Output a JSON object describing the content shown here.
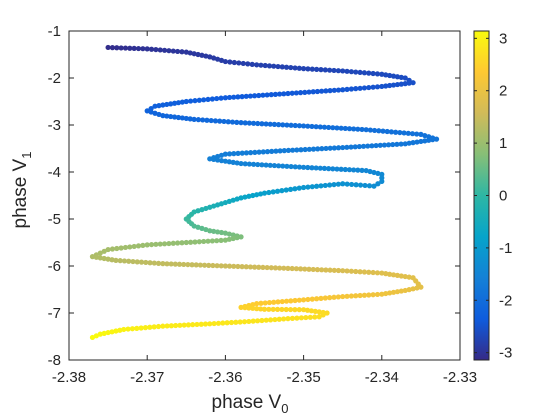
{
  "chart_data": {
    "type": "scatter",
    "title": "",
    "xlabel": "phase V",
    "xlabel_sub": "0",
    "ylabel": "phase V",
    "ylabel_sub": "1",
    "xlim": [
      -2.38,
      -2.33
    ],
    "ylim": [
      -8,
      -1
    ],
    "xticks": [
      -2.38,
      -2.37,
      -2.36,
      -2.35,
      -2.34,
      -2.33
    ],
    "xtick_labels": [
      "-2.38",
      "-2.37",
      "-2.36",
      "-2.35",
      "-2.34",
      "-2.33"
    ],
    "yticks": [
      -8,
      -7,
      -6,
      -5,
      -4,
      -3,
      -2,
      -1
    ],
    "ytick_labels": [
      "-8",
      "-7",
      "-6",
      "-5",
      "-4",
      "-3",
      "-2",
      "-1"
    ],
    "grid": false,
    "colormap": "parula",
    "colormap_stops": [
      "#352a87",
      "#0f5cdd",
      "#1481d6",
      "#06a4ca",
      "#2eb7a4",
      "#87bf77",
      "#d1bb59",
      "#fec832",
      "#f9fb0e"
    ],
    "colorbar": {
      "range": [
        -3.14,
        3.14
      ],
      "ticks": [
        -3,
        -2,
        -1,
        0,
        1,
        2,
        3
      ],
      "tick_labels": [
        "-3",
        "-2",
        "-1",
        "0",
        "1",
        "2",
        "3"
      ]
    },
    "curve_description_note": "",
    "path": [
      [
        -2.375,
        -1.35,
        -3.1
      ],
      [
        -2.37,
        -1.38,
        -3.0
      ],
      [
        -2.365,
        -1.45,
        -2.95
      ],
      [
        -2.362,
        -1.55,
        -2.9
      ],
      [
        -2.36,
        -1.65,
        -2.85
      ],
      [
        -2.356,
        -1.72,
        -2.8
      ],
      [
        -2.35,
        -1.8,
        -2.75
      ],
      [
        -2.345,
        -1.85,
        -2.7
      ],
      [
        -2.34,
        -1.92,
        -2.65
      ],
      [
        -2.337,
        -2.0,
        -2.6
      ],
      [
        -2.336,
        -2.1,
        -2.55
      ],
      [
        -2.34,
        -2.18,
        -2.5
      ],
      [
        -2.345,
        -2.25,
        -2.45
      ],
      [
        -2.352,
        -2.33,
        -2.4
      ],
      [
        -2.36,
        -2.42,
        -2.35
      ],
      [
        -2.365,
        -2.5,
        -2.3
      ],
      [
        -2.369,
        -2.6,
        -2.25
      ],
      [
        -2.37,
        -2.7,
        -2.2
      ],
      [
        -2.368,
        -2.8,
        -2.15
      ],
      [
        -2.364,
        -2.88,
        -2.1
      ],
      [
        -2.358,
        -2.95,
        -2.05
      ],
      [
        -2.35,
        -3.02,
        -2.0
      ],
      [
        -2.342,
        -3.1,
        -1.95
      ],
      [
        -2.335,
        -3.2,
        -1.9
      ],
      [
        -2.333,
        -3.3,
        -1.85
      ],
      [
        -2.337,
        -3.4,
        -1.8
      ],
      [
        -2.345,
        -3.48,
        -1.75
      ],
      [
        -2.353,
        -3.55,
        -1.7
      ],
      [
        -2.36,
        -3.62,
        -1.65
      ],
      [
        -2.362,
        -3.72,
        -1.6
      ],
      [
        -2.358,
        -3.82,
        -1.55
      ],
      [
        -2.35,
        -3.9,
        -1.5
      ],
      [
        -2.342,
        -3.97,
        -1.45
      ],
      [
        -2.34,
        -4.05,
        -1.4
      ],
      [
        -2.34,
        -4.2,
        -1.35
      ],
      [
        -2.341,
        -4.3,
        -1.3
      ],
      [
        -2.345,
        -4.25,
        -1.2
      ],
      [
        -2.35,
        -4.33,
        -1.1
      ],
      [
        -2.355,
        -4.45,
        -0.9
      ],
      [
        -2.358,
        -4.55,
        -0.7
      ],
      [
        -2.36,
        -4.65,
        -0.5
      ],
      [
        -2.362,
        -4.75,
        -0.3
      ],
      [
        -2.364,
        -4.85,
        -0.1
      ],
      [
        -2.365,
        -5.0,
        0.1
      ],
      [
        -2.364,
        -5.15,
        0.3
      ],
      [
        -2.362,
        -5.25,
        0.5
      ],
      [
        -2.36,
        -5.3,
        0.6
      ],
      [
        -2.358,
        -5.38,
        0.7
      ],
      [
        -2.36,
        -5.45,
        0.8
      ],
      [
        -2.365,
        -5.5,
        0.9
      ],
      [
        -2.37,
        -5.55,
        1.0
      ],
      [
        -2.375,
        -5.65,
        1.1
      ],
      [
        -2.377,
        -5.8,
        1.2
      ],
      [
        -2.374,
        -5.88,
        1.3
      ],
      [
        -2.368,
        -5.95,
        1.4
      ],
      [
        -2.36,
        -6.0,
        1.5
      ],
      [
        -2.352,
        -6.05,
        1.6
      ],
      [
        -2.345,
        -6.1,
        1.7
      ],
      [
        -2.34,
        -6.15,
        1.8
      ],
      [
        -2.336,
        -6.25,
        1.85
      ],
      [
        -2.335,
        -6.45,
        1.9
      ],
      [
        -2.337,
        -6.52,
        2.0
      ],
      [
        -2.34,
        -6.6,
        2.1
      ],
      [
        -2.345,
        -6.65,
        2.2
      ],
      [
        -2.35,
        -6.72,
        2.3
      ],
      [
        -2.356,
        -6.8,
        2.4
      ],
      [
        -2.358,
        -6.88,
        2.5
      ],
      [
        -2.355,
        -6.92,
        2.55
      ],
      [
        -2.35,
        -6.93,
        2.6
      ],
      [
        -2.347,
        -7.0,
        2.65
      ],
      [
        -2.348,
        -7.08,
        2.7
      ],
      [
        -2.352,
        -7.12,
        2.75
      ],
      [
        -2.357,
        -7.18,
        2.8
      ],
      [
        -2.362,
        -7.23,
        2.85
      ],
      [
        -2.368,
        -7.28,
        2.9
      ],
      [
        -2.373,
        -7.35,
        3.0
      ],
      [
        -2.376,
        -7.45,
        3.1
      ],
      [
        -2.377,
        -7.52,
        3.14
      ]
    ]
  }
}
